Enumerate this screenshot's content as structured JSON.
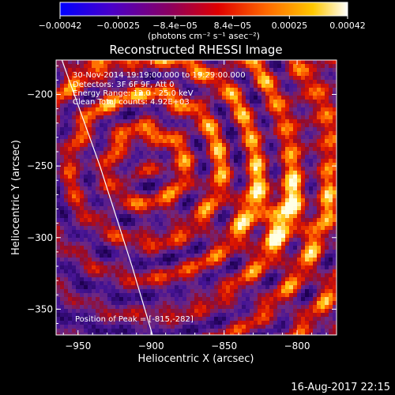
{
  "chart_data": {
    "type": "heatmap",
    "title": "Reconstructed RHESSI Image",
    "xlabel": "Heliocentric X (arcsec)",
    "ylabel": "Heliocentric Y (arcsec)",
    "xlim": [
      -965,
      -773
    ],
    "ylim": [
      -368,
      -176
    ],
    "x_ticks": [
      {
        "value": -950,
        "label": "−950"
      },
      {
        "value": -900,
        "label": "−900"
      },
      {
        "value": -850,
        "label": "−850"
      },
      {
        "value": -800,
        "label": "−800"
      }
    ],
    "y_ticks": [
      {
        "value": -200,
        "label": "−200"
      },
      {
        "value": -250,
        "label": "−250"
      },
      {
        "value": -300,
        "label": "−300"
      },
      {
        "value": -350,
        "label": "−350"
      }
    ],
    "colorbar": {
      "range": [
        -0.00042,
        0.00042
      ],
      "ticks": [
        {
          "value": -0.00042,
          "label": "−0.00042"
        },
        {
          "value": -0.00025,
          "label": "−0.00025"
        },
        {
          "value": -8.4e-05,
          "label": "−8.4e−05"
        },
        {
          "value": 8.4e-05,
          "label": "8.4e−05"
        },
        {
          "value": 0.00025,
          "label": "0.00025"
        },
        {
          "value": 0.00042,
          "label": "0.00042"
        }
      ],
      "unit_label": "(photons cm⁻² s⁻¹ asec⁻²)"
    },
    "annotations": {
      "time_range": "30-Nov-2014 19:19:00.000 to 19:29:00.000",
      "detectors": "Detectors: 3F 6F 9F, Att 0",
      "energy_range": "Energy Range: 12.0 - 25.0 keV",
      "clean_counts": "Clean    Total counts: 4.92E+03",
      "peak_position": "Position of Peak = [-815,-282]"
    },
    "peak": {
      "x": -815,
      "y": -282
    },
    "limb_curve": [
      {
        "x": -961,
        "y": -176
      },
      {
        "x": -935,
        "y": -250
      },
      {
        "x": -913,
        "y": -320
      },
      {
        "x": -899,
        "y": -368
      }
    ],
    "grid": false,
    "colormap": "blue-purple-red-orange-yellow-white"
  },
  "footer": {
    "timestamp": "16-Aug-2017 22:15"
  }
}
